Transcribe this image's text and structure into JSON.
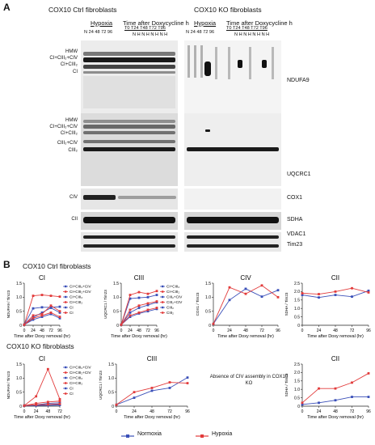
{
  "panel_a": {
    "letter": "A",
    "ctrl_title": "COX10 Ctrl  fibroblasts",
    "ko_title": "COX10 KO fibroblasts",
    "hypoxia_label": "Hypoxia",
    "doxy_label": "Time after Doxycycline h",
    "lanes_hyp": "N  24 48 72 96",
    "lanes_time_top": "T0  T24  T48  T72  T96",
    "lanes_nh": "N H  N H  N H  N H",
    "left_labels_ndufa9": [
      "HMW",
      "CI+CIII₂+CIV",
      "CI+CIII₂",
      "CI"
    ],
    "left_labels_uqcrc1": [
      "HMW",
      "CI+CIII₂+CIV",
      "CI+CIII₂",
      "CIII₂+CIV",
      "CIII₂"
    ],
    "left_label_civ": "CIV",
    "left_label_cii": "CII",
    "right_labels": {
      "ndufa9": "NDUFA9",
      "uqcrc1": "UQCRC1",
      "cox1": "COX1",
      "sdha": "SDHA",
      "vdac1": "VDAC1",
      "tim23": "Tim23"
    }
  },
  "panel_b": {
    "letter": "B",
    "ctrl_title": "COX10 Ctrl fibroblasts",
    "ko_title": "COX10 KO fibroblasts",
    "absence_note": "Absence of CIV assembly in COX10 KO",
    "legend": [
      {
        "label": "Normoxia",
        "color": "#3a4fb8"
      },
      {
        "label": "Hypoxia",
        "color": "#e23b3b"
      }
    ]
  },
  "chart_data": [
    {
      "type": "line",
      "title": "CI",
      "xlabel": "Time after Doxy removal   (hr)",
      "ylabel": "NDUFA9 / Tim23",
      "x": [
        0,
        24,
        48,
        72,
        96
      ],
      "xlim": [
        0,
        96
      ],
      "ylim": [
        0,
        1.5
      ],
      "xticks": [
        "0",
        "24",
        "48",
        "72",
        "96"
      ],
      "yticks": [
        "0",
        "0.5",
        "1.0",
        "1.5"
      ],
      "series": [
        {
          "name": "CI+CIII₂+CIV",
          "color": "#3a4fb8",
          "values": [
            0.02,
            0.28,
            0.45,
            0.62,
            0.45
          ]
        },
        {
          "name": "CI+CIII₂+CIV",
          "color": "#e23b3b",
          "values": [
            0.02,
            1.05,
            1.08,
            1.05,
            1.02
          ]
        },
        {
          "name": "CI+CIII₂",
          "color": "#3a4fb8",
          "values": [
            0.02,
            0.6,
            0.64,
            0.64,
            0.66
          ]
        },
        {
          "name": "CI+CIII₂",
          "color": "#e23b3b",
          "values": [
            0.02,
            0.35,
            0.4,
            0.7,
            0.5
          ]
        },
        {
          "name": "CI",
          "color": "#3a4fb8",
          "values": [
            0.02,
            0.2,
            0.3,
            0.4,
            0.25
          ]
        },
        {
          "name": "CI",
          "color": "#e23b3b",
          "values": [
            0.02,
            0.25,
            0.35,
            0.45,
            0.3
          ]
        }
      ]
    },
    {
      "type": "line",
      "title": "CIII",
      "xlabel": "Time after Doxy removal   (hr)",
      "ylabel": "UQCRC1 / Tim23",
      "x": [
        0,
        24,
        48,
        72,
        96
      ],
      "xlim": [
        0,
        96
      ],
      "ylim": [
        0,
        1.5
      ],
      "xticks": [
        "0",
        "24",
        "48",
        "72",
        "96"
      ],
      "yticks": [
        "0",
        "0.5",
        "1.0",
        "1.5"
      ],
      "series": [
        {
          "name": "CI+CIII₂",
          "color": "#3a4fb8",
          "values": [
            0.02,
            0.95,
            0.98,
            1.0,
            1.08
          ]
        },
        {
          "name": "CI+CIII₂",
          "color": "#e23b3b",
          "values": [
            0.02,
            1.08,
            1.18,
            1.12,
            1.22
          ]
        },
        {
          "name": "CIII₂+CIV",
          "color": "#3a4fb8",
          "values": [
            0.02,
            0.45,
            0.62,
            0.72,
            0.82
          ]
        },
        {
          "name": "CIII₂+CIV",
          "color": "#e23b3b",
          "values": [
            0.02,
            0.55,
            0.7,
            0.78,
            0.85
          ]
        },
        {
          "name": "CIII₂",
          "color": "#3a4fb8",
          "values": [
            0.02,
            0.3,
            0.42,
            0.5,
            0.58
          ]
        },
        {
          "name": "CIII₂",
          "color": "#e23b3b",
          "values": [
            0.02,
            0.35,
            0.45,
            0.55,
            0.62
          ]
        }
      ]
    },
    {
      "type": "line",
      "title": "CIV",
      "xlabel": "Time after Doxy removal   (hr)",
      "ylabel": "COX1 / Tim23",
      "x": [
        0,
        24,
        48,
        72,
        96
      ],
      "xlim": [
        0,
        96
      ],
      "ylim": [
        0,
        1.5
      ],
      "xticks": [
        "0",
        "24",
        "48",
        "72",
        "96"
      ],
      "yticks": [
        "0",
        "0.5",
        "1.0",
        "1.5"
      ],
      "series": [
        {
          "color": "#3a4fb8",
          "values": [
            0.05,
            0.9,
            1.3,
            1.02,
            1.25
          ]
        },
        {
          "color": "#e23b3b",
          "values": [
            0.05,
            1.35,
            1.12,
            1.42,
            1.0
          ]
        }
      ]
    },
    {
      "type": "line",
      "title": "CII",
      "xlabel": "Time after Doxy removal   (hr)",
      "ylabel": "SDHA / Tim23",
      "x": [
        0,
        24,
        48,
        72,
        96
      ],
      "xlim": [
        0,
        96
      ],
      "ylim": [
        0,
        2.5
      ],
      "xticks": [
        "0",
        "24",
        "48",
        "72",
        "96"
      ],
      "yticks": [
        "0",
        "0.5",
        "1.0",
        "1.5",
        "2.0",
        "2.5"
      ],
      "series": [
        {
          "color": "#3a4fb8",
          "values": [
            1.8,
            1.65,
            1.8,
            1.7,
            2.05
          ]
        },
        {
          "color": "#e23b3b",
          "values": [
            1.9,
            1.85,
            2.0,
            2.2,
            1.95
          ]
        }
      ]
    },
    {
      "type": "line",
      "title": "CI",
      "xlabel": "Time after Doxy removal   (hr)",
      "ylabel": "NDUFA9 / Tim23",
      "x": [
        0,
        24,
        48,
        72
      ],
      "xlim": [
        0,
        72
      ],
      "ylim": [
        0,
        1.5
      ],
      "xticks": [
        "0",
        "24",
        "48",
        "72"
      ],
      "yticks": [
        "0",
        "0.5",
        "1.0",
        "1.5"
      ],
      "series": [
        {
          "name": "CI+CIII₂+CIV",
          "color": "#3a4fb8",
          "values": [
            0.02,
            0.05,
            0.1,
            0.12
          ]
        },
        {
          "name": "CI+CIII₂+CIV",
          "color": "#e23b3b",
          "values": [
            0.02,
            0.35,
            1.32,
            0.25
          ]
        },
        {
          "name": "CI+CIII₂",
          "color": "#3a4fb8",
          "values": [
            0.02,
            0.03,
            0.05,
            0.06
          ]
        },
        {
          "name": "CI+CIII₂",
          "color": "#e23b3b",
          "values": [
            0.02,
            0.1,
            0.15,
            0.18
          ]
        },
        {
          "name": "CI",
          "color": "#3a4fb8",
          "values": [
            0.02,
            0.02,
            0.03,
            0.04
          ]
        },
        {
          "name": "CI",
          "color": "#e23b3b",
          "values": [
            0.02,
            0.05,
            0.06,
            0.08
          ]
        }
      ]
    },
    {
      "type": "line",
      "title": "CIII",
      "xlabel": "Time after Doxy removal   (hr)",
      "ylabel": "UQCRC1 / Tim23",
      "x": [
        0,
        24,
        48,
        72,
        96
      ],
      "xlim": [
        0,
        96
      ],
      "ylim": [
        0,
        1.5
      ],
      "xticks": [
        "0",
        "24",
        "48",
        "72",
        "96"
      ],
      "yticks": [
        "0",
        "0.5",
        "1.0",
        "1.5"
      ],
      "series": [
        {
          "color": "#3a4fb8",
          "values": [
            0.05,
            0.3,
            0.55,
            0.65,
            1.02
          ]
        },
        {
          "color": "#e23b3b",
          "values": [
            0.05,
            0.5,
            0.65,
            0.85,
            0.82
          ]
        }
      ]
    },
    {
      "type": "line",
      "title": "CII",
      "xlabel": "Time after Doxy removal   (hr)",
      "ylabel": "SDHA / Tim23",
      "x": [
        0,
        24,
        48,
        72,
        96
      ],
      "xlim": [
        0,
        96
      ],
      "ylim": [
        0,
        2.5
      ],
      "xticks": [
        "0",
        "24",
        "48",
        "72",
        "96"
      ],
      "yticks": [
        "0",
        "0.5",
        "1.0",
        "1.5",
        "2.0",
        "2.5"
      ],
      "series": [
        {
          "color": "#3a4fb8",
          "values": [
            0.1,
            0.2,
            0.35,
            0.55,
            0.55
          ]
        },
        {
          "color": "#e23b3b",
          "values": [
            0.2,
            1.05,
            1.05,
            1.4,
            1.95
          ]
        }
      ]
    }
  ]
}
